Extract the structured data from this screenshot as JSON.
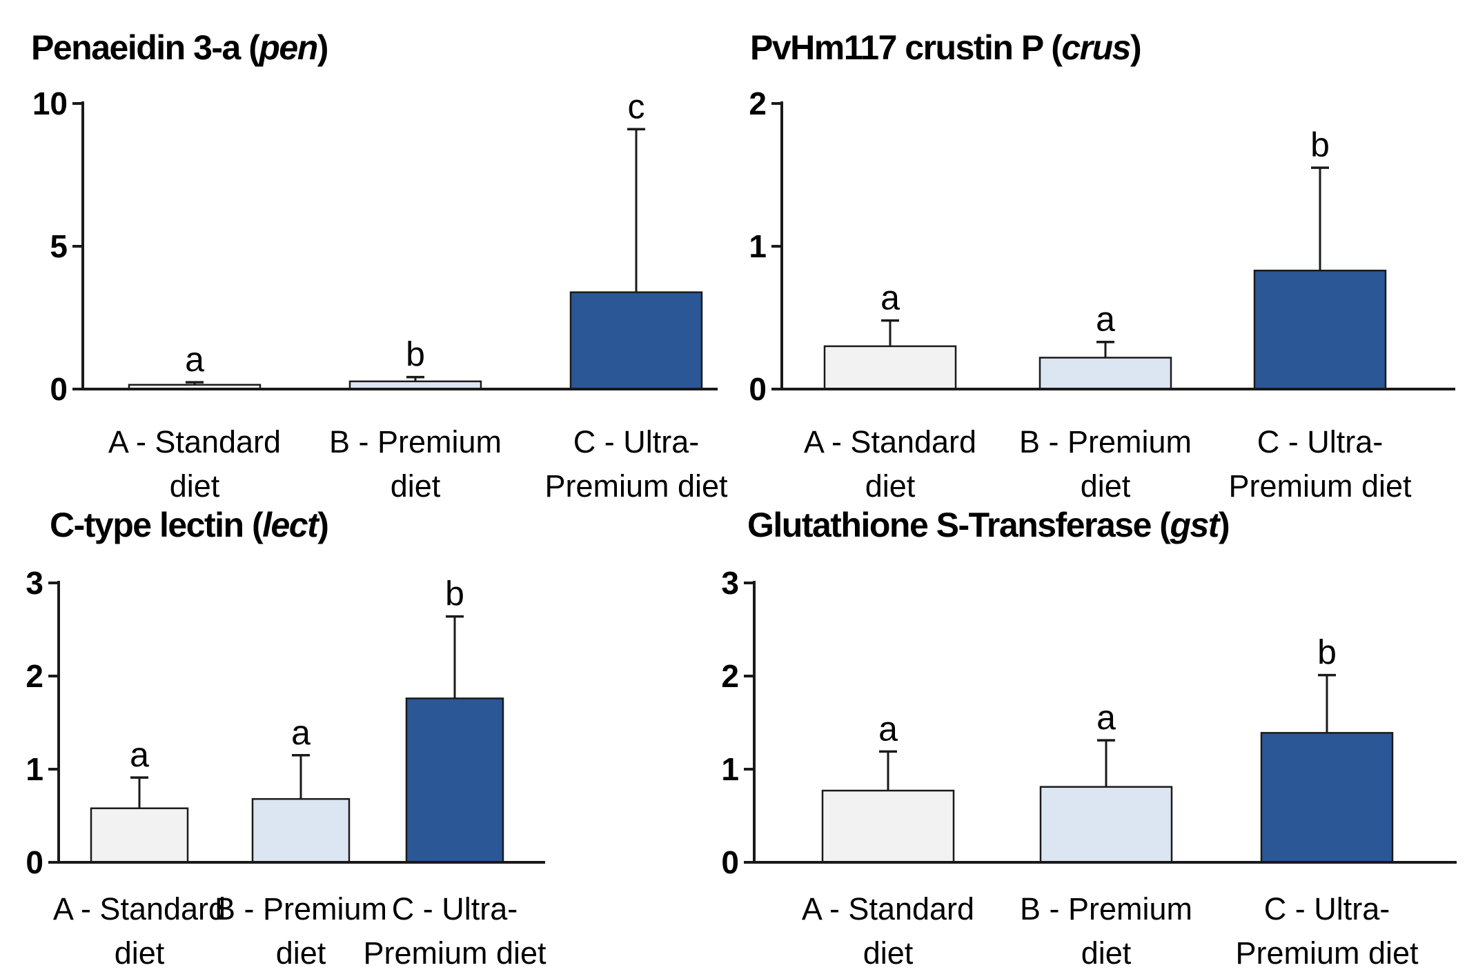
{
  "page": {
    "background": "#ffffff"
  },
  "colors": {
    "bar_fills": [
      "#f2f2f2",
      "#dce6f2",
      "#2b5797"
    ],
    "bar_stroke": "#1a1a1a",
    "axis_color": "#1a1a1a",
    "error_color": "#1a1a1a",
    "text_color": "#000000"
  },
  "categories_lines": [
    [
      "A - Standard",
      "diet"
    ],
    [
      "B - Premium",
      "diet"
    ],
    [
      "C - Ultra-",
      "Premium diet"
    ]
  ],
  "chart_data": [
    {
      "id": "pen",
      "type": "bar",
      "title_prefix": "Penaeidin 3-a (",
      "title_italic": "pen",
      "title_suffix": ")",
      "categories": [
        "A - Standard diet",
        "B - Premium diet",
        "C - Ultra-Premium diet"
      ],
      "values": [
        0.15,
        0.27,
        3.39
      ],
      "errors_up": [
        0.09,
        0.15,
        5.71
      ],
      "sig_letters": [
        "a",
        "b",
        "c"
      ],
      "ylim": [
        0,
        10
      ],
      "yticks": [
        0,
        5,
        10
      ],
      "xlabel": "",
      "ylabel": "",
      "grid": false,
      "legend": false
    },
    {
      "id": "crus",
      "type": "bar",
      "title_prefix": "PvHm117 crustin P (",
      "title_italic": "crus",
      "title_suffix": ")",
      "categories": [
        "A - Standard diet",
        "B - Premium diet",
        "C - Ultra-Premium diet"
      ],
      "values": [
        0.3,
        0.22,
        0.83
      ],
      "errors_up": [
        0.18,
        0.11,
        0.72
      ],
      "sig_letters": [
        "a",
        "a",
        "b"
      ],
      "ylim": [
        0,
        2
      ],
      "yticks": [
        0,
        1,
        2
      ],
      "xlabel": "",
      "ylabel": "",
      "grid": false,
      "legend": false
    },
    {
      "id": "lect",
      "type": "bar",
      "title_prefix": "C-type lectin (",
      "title_italic": "lect",
      "title_suffix": ")",
      "categories": [
        "A - Standard diet",
        "B - Premium diet",
        "C - Ultra-Premium diet"
      ],
      "values": [
        0.58,
        0.68,
        1.76
      ],
      "errors_up": [
        0.33,
        0.47,
        0.88
      ],
      "sig_letters": [
        "a",
        "a",
        "b"
      ],
      "ylim": [
        0,
        3
      ],
      "yticks": [
        0,
        1,
        2,
        3
      ],
      "xlabel": "",
      "ylabel": "",
      "grid": false,
      "legend": false
    },
    {
      "id": "gst",
      "type": "bar",
      "title_prefix": "Glutathione S-Transferase (",
      "title_italic": "gst",
      "title_suffix": ")",
      "categories": [
        "A - Standard diet",
        "B - Premium diet",
        "C - Ultra-Premium diet"
      ],
      "values": [
        0.77,
        0.81,
        1.39
      ],
      "errors_up": [
        0.42,
        0.5,
        0.62
      ],
      "sig_letters": [
        "a",
        "a",
        "b"
      ],
      "ylim": [
        0,
        3
      ],
      "yticks": [
        0,
        1,
        2,
        3
      ],
      "xlabel": "",
      "ylabel": "",
      "grid": false,
      "legend": false
    }
  ]
}
